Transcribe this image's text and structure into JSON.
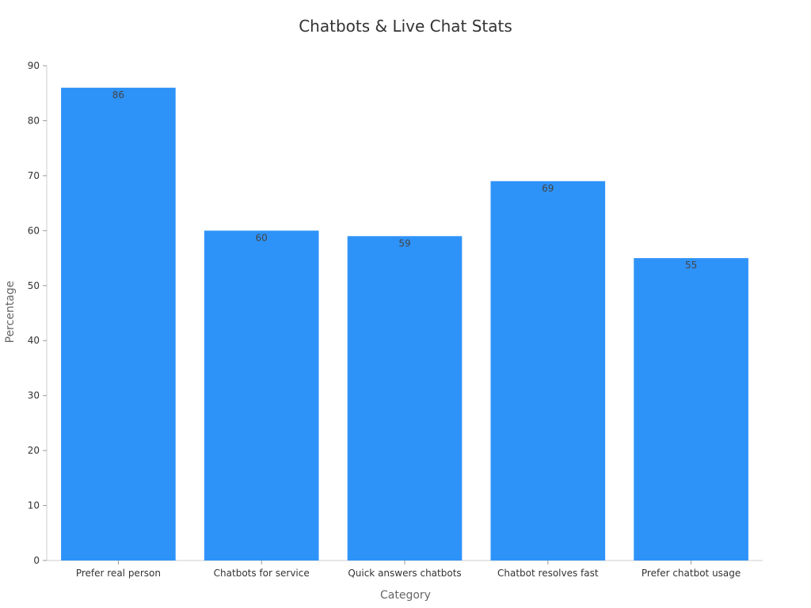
{
  "chart_data": {
    "type": "bar",
    "title": "Chatbots & Live Chat Stats",
    "xlabel": "Category",
    "ylabel": "Percentage",
    "categories": [
      "Prefer real person",
      "Chatbots for service",
      "Quick answers chatbots",
      "Chatbot resolves fast",
      "Prefer chatbot usage"
    ],
    "values": [
      86,
      60,
      59,
      69,
      55
    ],
    "ylim": [
      0,
      90
    ],
    "yticks": [
      0,
      10,
      20,
      30,
      40,
      50,
      60,
      70,
      80,
      90
    ],
    "grid": false,
    "bar_color": "#2e93f8"
  }
}
